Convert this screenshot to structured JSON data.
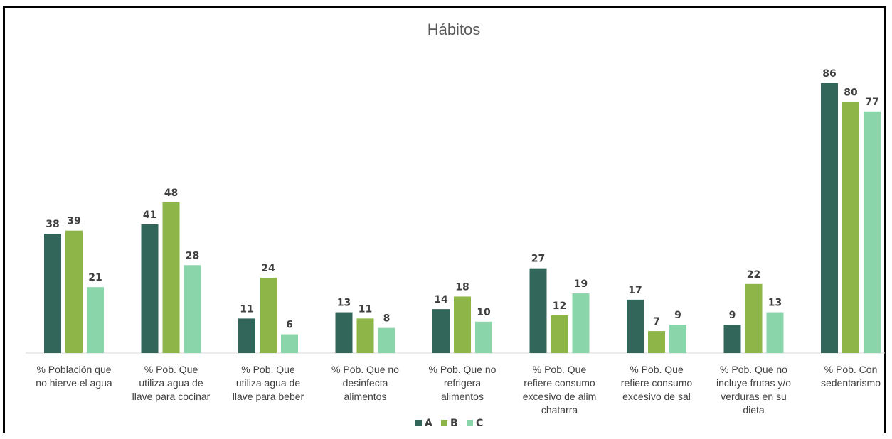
{
  "chart_data": {
    "type": "bar",
    "title": "Hábitos",
    "xlabel": "",
    "ylabel": "",
    "ylim": [
      0,
      90
    ],
    "grid": false,
    "legend_position": "bottom",
    "categories": [
      [
        "% Población que",
        "no hierve el agua"
      ],
      [
        "% Pob. Que",
        "utiliza agua de",
        "llave para cocinar"
      ],
      [
        "% Pob. Que",
        "utiliza agua de",
        "llave para beber"
      ],
      [
        "% Pob. Que no",
        "desinfecta",
        "alimentos"
      ],
      [
        "% Pob. Que no",
        "refrigera",
        "alimentos"
      ],
      [
        "% Pob. Que",
        "refiere consumo",
        "excesivo de alim",
        "chatarra"
      ],
      [
        "% Pob. Que",
        "refiere consumo",
        "excesivo de sal"
      ],
      [
        "% Pob. Que no",
        "incluye frutas y/o",
        "verduras en su",
        "dieta"
      ],
      [
        "% Pob. Con",
        "sedentarismo"
      ]
    ],
    "series": [
      {
        "name": "A",
        "color": "#33665a",
        "values": [
          38,
          41,
          11,
          13,
          14,
          27,
          17,
          9,
          86
        ]
      },
      {
        "name": "B",
        "color": "#8db547",
        "values": [
          39,
          48,
          24,
          11,
          18,
          12,
          7,
          22,
          80
        ]
      },
      {
        "name": "C",
        "color": "#8bd5aa",
        "values": [
          21,
          28,
          6,
          8,
          10,
          19,
          9,
          13,
          77
        ]
      }
    ]
  }
}
